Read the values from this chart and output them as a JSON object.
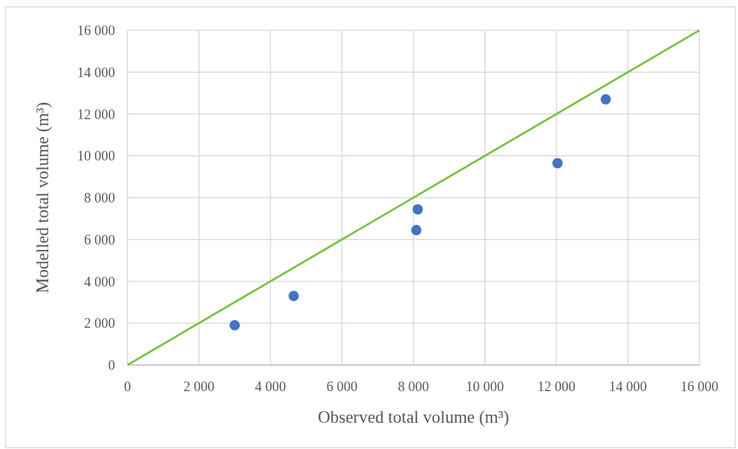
{
  "chart_data": {
    "type": "scatter",
    "xlabel": "Observed total volume (m³)",
    "ylabel": "Modelled total volume (m³)",
    "xlim": [
      0,
      16000
    ],
    "ylim": [
      0,
      16000
    ],
    "xticks": [
      0,
      {
        "value": 2000,
        "label": "2 000"
      },
      {
        "value": 4000,
        "label": "4 000"
      },
      {
        "value": 6000,
        "label": "6 000"
      },
      {
        "value": 8000,
        "label": "8 000"
      },
      {
        "value": 10000,
        "label": "10 000"
      },
      {
        "value": 12000,
        "label": "12 000"
      },
      {
        "value": 14000,
        "label": "14 000"
      },
      {
        "value": 16000,
        "label": "16 000"
      }
    ],
    "yticks": [
      0,
      {
        "value": 2000,
        "label": "2 000"
      },
      {
        "value": 4000,
        "label": "4 000"
      },
      {
        "value": 6000,
        "label": "6 000"
      },
      {
        "value": 8000,
        "label": "8 000"
      },
      {
        "value": 10000,
        "label": "10 000"
      },
      {
        "value": 12000,
        "label": "12 000"
      },
      {
        "value": 14000,
        "label": "14 000"
      },
      {
        "value": 16000,
        "label": "16 000"
      }
    ],
    "grid": true,
    "series": [
      {
        "marker": "circle",
        "color": "#4472c4",
        "x": [
          3000,
          4650,
          8080,
          8120,
          12030,
          13380
        ],
        "values": [
          1900,
          3300,
          6450,
          7440,
          9650,
          12700
        ]
      },
      {
        "type": "line",
        "color": "#7cc242",
        "x": [
          0,
          16000
        ],
        "values": [
          0,
          16000
        ],
        "line_style": "solid"
      }
    ]
  }
}
